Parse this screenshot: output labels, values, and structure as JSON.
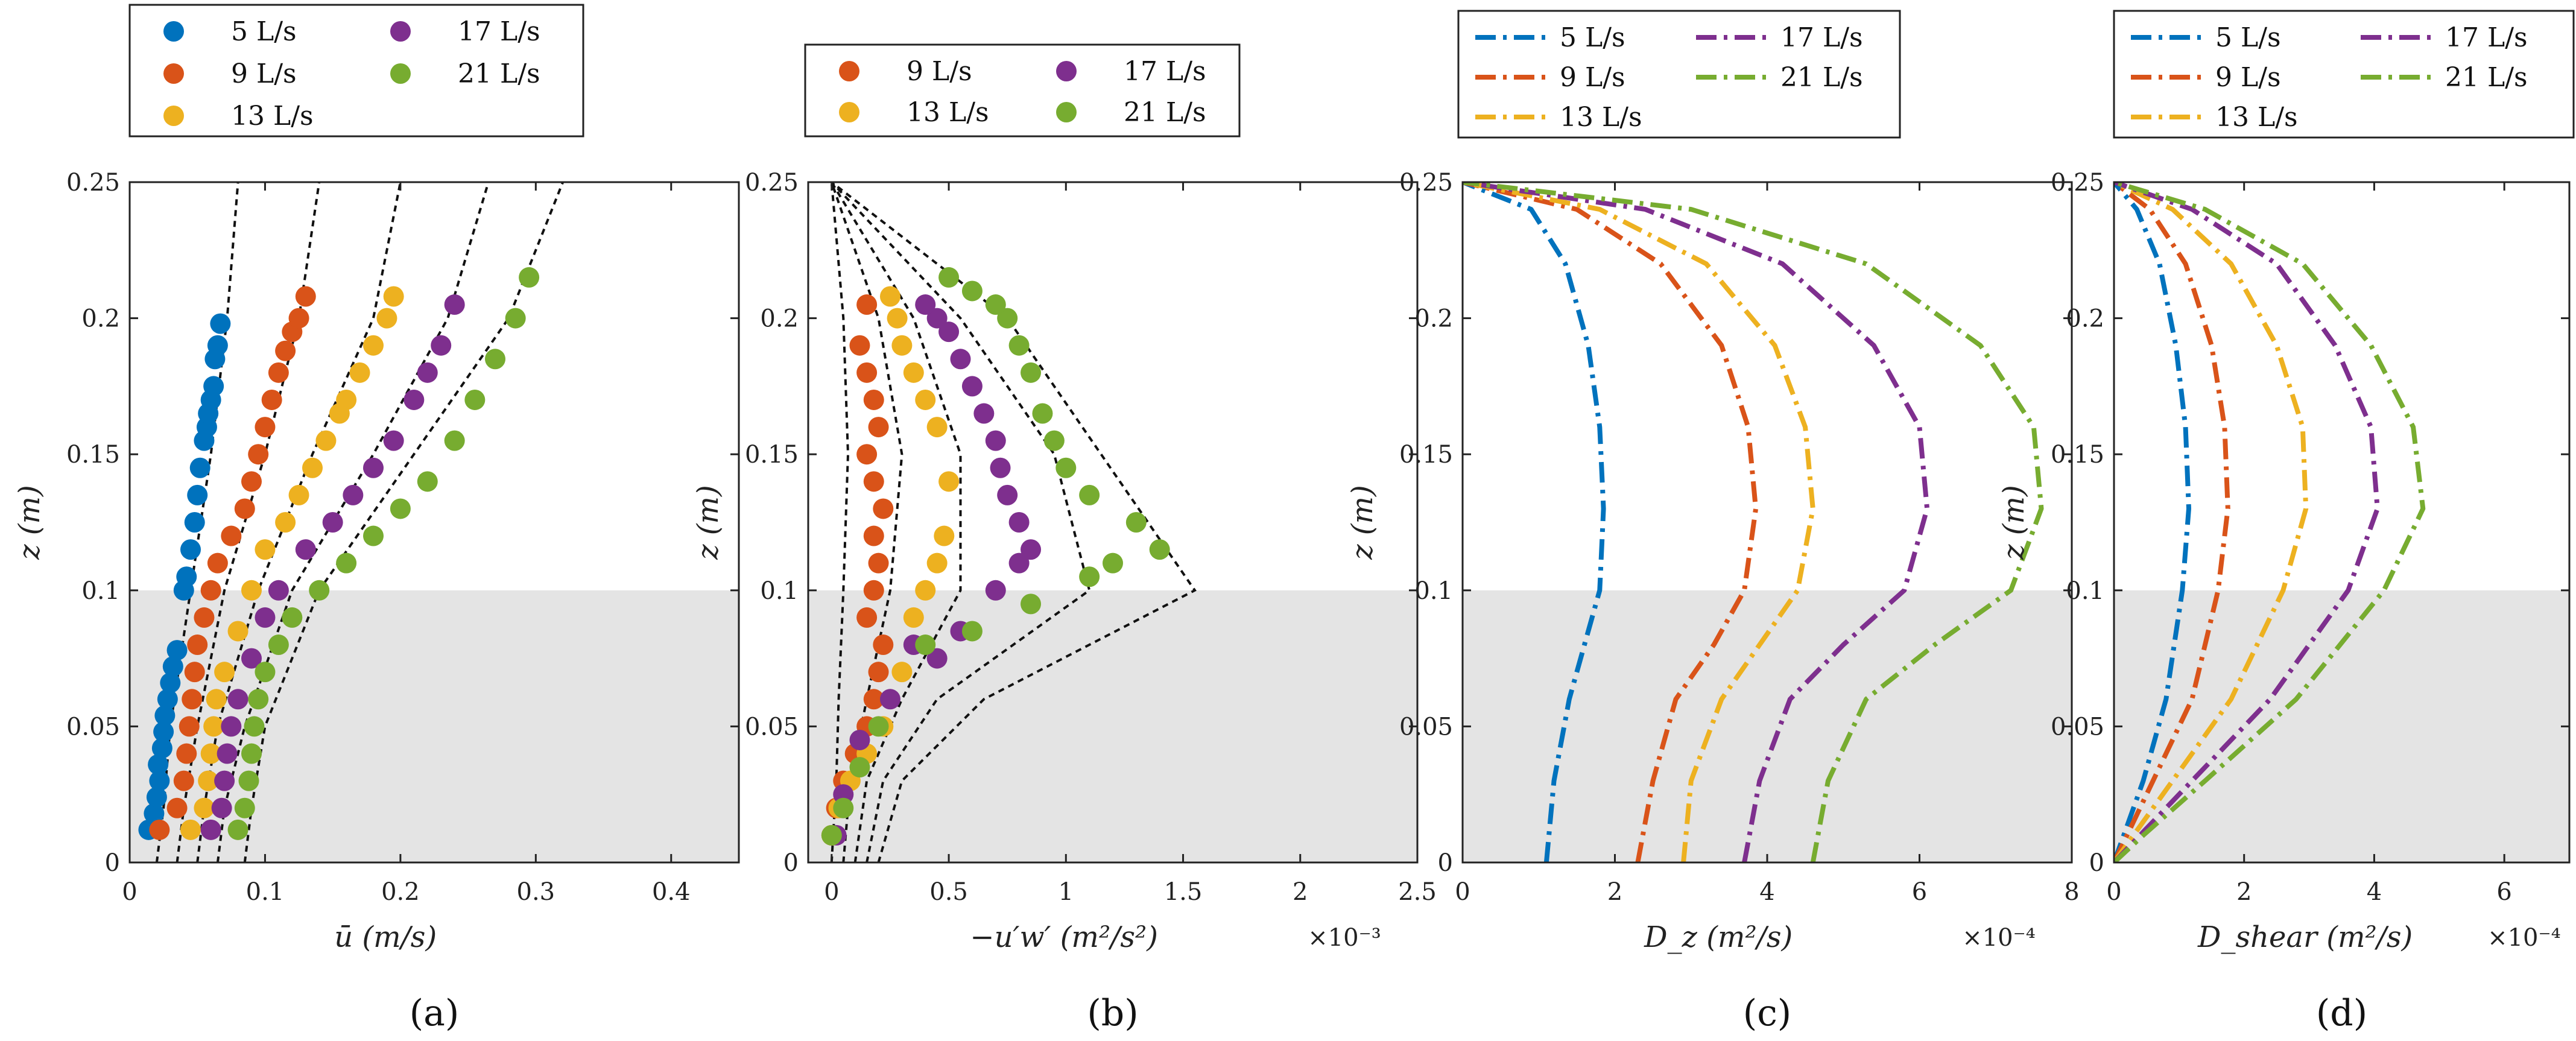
{
  "colors": {
    "s5": "#0072BD",
    "s9": "#D95319",
    "s13": "#EDB120",
    "s17": "#7E2F8E",
    "s21": "#77AC30",
    "shade": "#e4e4e4",
    "fit": "#111111"
  },
  "chart_data": [
    {
      "id": "a",
      "type": "scatter",
      "panel_label": "(a)",
      "xlabel": "ū  (m/s)",
      "ylabel": "z  (m)",
      "xlim": [
        0,
        0.45
      ],
      "ylim": [
        0,
        0.25
      ],
      "xticks": [
        "0",
        "0.1",
        "0.2",
        "0.3",
        "0.4"
      ],
      "xtick_vals": [
        0,
        0.1,
        0.2,
        0.3,
        0.4
      ],
      "yticks": [
        "0",
        "0.05",
        "0.1",
        "0.15",
        "0.2",
        "0.25"
      ],
      "ytick_vals": [
        0,
        0.05,
        0.1,
        0.15,
        0.2,
        0.25
      ],
      "x_multiplier": "",
      "shaded_region": [
        0,
        0.1
      ],
      "legend_cols": 2,
      "series": [
        {
          "name": "5 L/s",
          "color_key": "s5",
          "x": [
            0.014,
            0.018,
            0.02,
            0.022,
            0.021,
            0.024,
            0.025,
            0.026,
            0.028,
            0.03,
            0.032,
            0.035,
            0.04,
            0.042,
            0.045,
            0.048,
            0.05,
            0.052,
            0.055,
            0.057,
            0.058,
            0.06,
            0.062,
            0.063,
            0.065,
            0.067
          ],
          "y": [
            0.012,
            0.018,
            0.024,
            0.03,
            0.036,
            0.042,
            0.048,
            0.054,
            0.06,
            0.066,
            0.072,
            0.078,
            0.1,
            0.105,
            0.115,
            0.125,
            0.135,
            0.145,
            0.155,
            0.16,
            0.165,
            0.17,
            0.175,
            0.185,
            0.19,
            0.198
          ]
        },
        {
          "name": "9 L/s",
          "color_key": "s9",
          "x": [
            0.022,
            0.035,
            0.04,
            0.042,
            0.044,
            0.046,
            0.048,
            0.05,
            0.055,
            0.06,
            0.065,
            0.075,
            0.085,
            0.09,
            0.095,
            0.1,
            0.105,
            0.11,
            0.115,
            0.12,
            0.125,
            0.13
          ],
          "y": [
            0.012,
            0.02,
            0.03,
            0.04,
            0.05,
            0.06,
            0.07,
            0.08,
            0.09,
            0.1,
            0.11,
            0.12,
            0.13,
            0.14,
            0.15,
            0.16,
            0.17,
            0.18,
            0.188,
            0.195,
            0.2,
            0.208
          ]
        },
        {
          "name": "13 L/s",
          "color_key": "s13",
          "x": [
            0.045,
            0.055,
            0.058,
            0.06,
            0.062,
            0.064,
            0.07,
            0.08,
            0.09,
            0.1,
            0.115,
            0.125,
            0.135,
            0.145,
            0.155,
            0.16,
            0.17,
            0.18,
            0.19,
            0.195
          ],
          "y": [
            0.012,
            0.02,
            0.03,
            0.04,
            0.05,
            0.06,
            0.07,
            0.085,
            0.1,
            0.115,
            0.125,
            0.135,
            0.145,
            0.155,
            0.165,
            0.17,
            0.18,
            0.19,
            0.2,
            0.208
          ]
        },
        {
          "name": "17 L/s",
          "color_key": "s17",
          "x": [
            0.06,
            0.068,
            0.07,
            0.072,
            0.075,
            0.08,
            0.09,
            0.1,
            0.11,
            0.13,
            0.15,
            0.165,
            0.18,
            0.195,
            0.21,
            0.22,
            0.23,
            0.24
          ],
          "y": [
            0.012,
            0.02,
            0.03,
            0.04,
            0.05,
            0.06,
            0.075,
            0.09,
            0.1,
            0.115,
            0.125,
            0.135,
            0.145,
            0.155,
            0.17,
            0.18,
            0.19,
            0.205
          ]
        },
        {
          "name": "21 L/s",
          "color_key": "s21",
          "x": [
            0.08,
            0.085,
            0.088,
            0.09,
            0.092,
            0.095,
            0.1,
            0.11,
            0.12,
            0.14,
            0.16,
            0.18,
            0.2,
            0.22,
            0.24,
            0.255,
            0.27,
            0.285,
            0.295
          ],
          "y": [
            0.012,
            0.02,
            0.03,
            0.04,
            0.05,
            0.06,
            0.07,
            0.08,
            0.09,
            0.1,
            0.11,
            0.12,
            0.13,
            0.14,
            0.155,
            0.17,
            0.185,
            0.2,
            0.215
          ]
        }
      ],
      "fit_curves": [
        {
          "x": [
            0.02,
            0.025,
            0.03,
            0.045,
            0.06,
            0.072,
            0.08
          ],
          "y": [
            0.0,
            0.02,
            0.05,
            0.1,
            0.15,
            0.2,
            0.25
          ]
        },
        {
          "x": [
            0.035,
            0.04,
            0.05,
            0.07,
            0.1,
            0.125,
            0.14
          ],
          "y": [
            0.0,
            0.02,
            0.05,
            0.1,
            0.15,
            0.2,
            0.25
          ]
        },
        {
          "x": [
            0.05,
            0.055,
            0.065,
            0.095,
            0.135,
            0.18,
            0.2
          ],
          "y": [
            0.0,
            0.02,
            0.05,
            0.1,
            0.15,
            0.2,
            0.25
          ]
        },
        {
          "x": [
            0.065,
            0.07,
            0.085,
            0.12,
            0.18,
            0.235,
            0.265
          ],
          "y": [
            0.0,
            0.02,
            0.05,
            0.1,
            0.15,
            0.2,
            0.25
          ]
        },
        {
          "x": [
            0.085,
            0.09,
            0.1,
            0.14,
            0.21,
            0.28,
            0.32
          ],
          "y": [
            0.0,
            0.02,
            0.05,
            0.1,
            0.15,
            0.2,
            0.25
          ]
        }
      ]
    },
    {
      "id": "b",
      "type": "scatter",
      "panel_label": "(b)",
      "xlabel": "−u′w′  (m²/s²)",
      "ylabel": "z  (m)",
      "xlim": [
        -0.1,
        2.5
      ],
      "ylim": [
        0,
        0.25
      ],
      "xticks": [
        "0",
        "0.5",
        "1",
        "1.5",
        "2",
        "2.5"
      ],
      "xtick_vals": [
        0,
        0.5,
        1,
        1.5,
        2,
        2.5
      ],
      "yticks": [
        "0",
        "0.05",
        "0.1",
        "0.15",
        "0.2",
        "0.25"
      ],
      "ytick_vals": [
        0,
        0.05,
        0.1,
        0.15,
        0.2,
        0.25
      ],
      "x_multiplier": "×10⁻³",
      "shaded_region": [
        0,
        0.1
      ],
      "legend_cols": 2,
      "series": [
        {
          "name": "9 L/s",
          "color_key": "s9",
          "x": [
            0.0,
            0.02,
            0.05,
            0.1,
            0.15,
            0.18,
            0.2,
            0.22,
            0.15,
            0.18,
            0.2,
            0.18,
            0.22,
            0.18,
            0.15,
            0.2,
            0.18,
            0.15,
            0.12,
            0.15
          ],
          "y": [
            0.01,
            0.02,
            0.03,
            0.04,
            0.05,
            0.06,
            0.07,
            0.08,
            0.09,
            0.1,
            0.11,
            0.12,
            0.13,
            0.14,
            0.15,
            0.16,
            0.17,
            0.18,
            0.19,
            0.205
          ]
        },
        {
          "name": "13 L/s",
          "color_key": "s13",
          "x": [
            0.0,
            0.03,
            0.08,
            0.15,
            0.22,
            0.3,
            0.35,
            0.4,
            0.45,
            0.48,
            0.5,
            0.45,
            0.4,
            0.35,
            0.3,
            0.28,
            0.25
          ],
          "y": [
            0.01,
            0.02,
            0.03,
            0.04,
            0.05,
            0.07,
            0.09,
            0.1,
            0.11,
            0.12,
            0.14,
            0.16,
            0.17,
            0.18,
            0.19,
            0.2,
            0.208
          ]
        },
        {
          "name": "17 L/s",
          "color_key": "s17",
          "x": [
            0.02,
            0.05,
            0.12,
            0.25,
            0.35,
            0.45,
            0.55,
            0.7,
            0.8,
            0.85,
            0.8,
            0.75,
            0.72,
            0.7,
            0.65,
            0.6,
            0.55,
            0.5,
            0.45,
            0.4
          ],
          "y": [
            0.01,
            0.025,
            0.045,
            0.06,
            0.08,
            0.075,
            0.085,
            0.1,
            0.11,
            0.115,
            0.125,
            0.135,
            0.145,
            0.155,
            0.165,
            0.175,
            0.185,
            0.195,
            0.2,
            0.205
          ]
        },
        {
          "name": "21 L/s",
          "color_key": "s21",
          "x": [
            0.0,
            0.05,
            0.12,
            0.2,
            0.4,
            0.6,
            0.85,
            1.1,
            1.2,
            1.4,
            1.3,
            1.1,
            1.0,
            0.95,
            0.9,
            0.85,
            0.8,
            0.75,
            0.7,
            0.6,
            0.5
          ],
          "y": [
            0.01,
            0.02,
            0.035,
            0.05,
            0.08,
            0.085,
            0.095,
            0.105,
            0.11,
            0.115,
            0.125,
            0.135,
            0.145,
            0.155,
            0.165,
            0.18,
            0.19,
            0.2,
            0.205,
            0.21,
            0.215
          ]
        }
      ],
      "fit_curves": [
        {
          "x": [
            0.0,
            0.02,
            0.03,
            0.05,
            0.07,
            0.05,
            0.0
          ],
          "y": [
            0.0,
            0.03,
            0.06,
            0.1,
            0.15,
            0.2,
            0.25
          ]
        },
        {
          "x": [
            0.05,
            0.08,
            0.15,
            0.25,
            0.3,
            0.2,
            0.0
          ],
          "y": [
            0.0,
            0.03,
            0.06,
            0.1,
            0.15,
            0.2,
            0.25
          ]
        },
        {
          "x": [
            0.1,
            0.15,
            0.3,
            0.55,
            0.55,
            0.35,
            0.0
          ],
          "y": [
            0.0,
            0.03,
            0.06,
            0.1,
            0.15,
            0.2,
            0.25
          ]
        },
        {
          "x": [
            0.15,
            0.22,
            0.45,
            1.1,
            0.95,
            0.55,
            0.0
          ],
          "y": [
            0.0,
            0.03,
            0.06,
            0.1,
            0.15,
            0.2,
            0.25
          ]
        },
        {
          "x": [
            0.2,
            0.3,
            0.65,
            1.55,
            1.15,
            0.75,
            0.0
          ],
          "y": [
            0.0,
            0.03,
            0.06,
            0.1,
            0.15,
            0.2,
            0.25
          ]
        }
      ]
    },
    {
      "id": "c",
      "type": "line",
      "panel_label": "(c)",
      "xlabel": "D_z  (m²/s)",
      "ylabel": "z  (m)",
      "xlim": [
        0,
        8
      ],
      "ylim": [
        0,
        0.25
      ],
      "xticks": [
        "0",
        "2",
        "4",
        "6",
        "8"
      ],
      "xtick_vals": [
        0,
        2,
        4,
        6,
        8
      ],
      "yticks": [
        "0",
        "0.05",
        "0.1",
        "0.15",
        "0.2",
        "0.25"
      ],
      "ytick_vals": [
        0,
        0.05,
        0.1,
        0.15,
        0.2,
        0.25
      ],
      "x_multiplier": "×10⁻⁴",
      "shaded_region": [
        0,
        0.1
      ],
      "legend_cols": 2,
      "series": [
        {
          "name": "5 L/s",
          "color_key": "s5",
          "x": [
            1.1,
            1.2,
            1.4,
            1.6,
            1.8,
            1.85,
            1.8,
            1.65,
            1.35,
            0.9,
            0.0
          ],
          "y": [
            0.0,
            0.03,
            0.06,
            0.08,
            0.1,
            0.13,
            0.16,
            0.19,
            0.22,
            0.24,
            0.25
          ]
        },
        {
          "name": "9 L/s",
          "color_key": "s9",
          "x": [
            2.3,
            2.5,
            2.8,
            3.3,
            3.7,
            3.85,
            3.75,
            3.4,
            2.6,
            1.5,
            0.0
          ],
          "y": [
            0.0,
            0.03,
            0.06,
            0.08,
            0.1,
            0.13,
            0.16,
            0.19,
            0.22,
            0.24,
            0.25
          ]
        },
        {
          "name": "13 L/s",
          "color_key": "s13",
          "x": [
            2.9,
            3.0,
            3.4,
            3.9,
            4.4,
            4.6,
            4.5,
            4.1,
            3.2,
            1.8,
            0.0
          ],
          "y": [
            0.0,
            0.03,
            0.06,
            0.08,
            0.1,
            0.13,
            0.16,
            0.19,
            0.22,
            0.24,
            0.25
          ]
        },
        {
          "name": "17 L/s",
          "color_key": "s17",
          "x": [
            3.7,
            3.9,
            4.3,
            5.0,
            5.8,
            6.1,
            6.0,
            5.4,
            4.2,
            2.4,
            0.0
          ],
          "y": [
            0.0,
            0.03,
            0.06,
            0.08,
            0.1,
            0.13,
            0.16,
            0.19,
            0.22,
            0.24,
            0.25
          ]
        },
        {
          "name": "21 L/s",
          "color_key": "s21",
          "x": [
            4.6,
            4.8,
            5.3,
            6.2,
            7.2,
            7.6,
            7.5,
            6.8,
            5.3,
            3.0,
            0.0
          ],
          "y": [
            0.0,
            0.03,
            0.06,
            0.08,
            0.1,
            0.13,
            0.16,
            0.19,
            0.22,
            0.24,
            0.25
          ]
        }
      ]
    },
    {
      "id": "d",
      "type": "line",
      "panel_label": "(d)",
      "xlabel": "D_shear  (m²/s)",
      "ylabel": "z  (m)",
      "xlim": [
        0,
        7
      ],
      "ylim": [
        0,
        0.25
      ],
      "xticks": [
        "0",
        "2",
        "4",
        "6"
      ],
      "xtick_vals": [
        0,
        2,
        4,
        6
      ],
      "yticks": [
        "0",
        "0.05",
        "0.1",
        "0.15",
        "0.2",
        "0.25"
      ],
      "ytick_vals": [
        0,
        0.05,
        0.1,
        0.15,
        0.2,
        0.25
      ],
      "x_multiplier": "×10⁻⁴",
      "shaded_region": [
        0,
        0.1
      ],
      "legend_cols": 2,
      "series": [
        {
          "name": "5 L/s",
          "color_key": "s5",
          "x": [
            0.0,
            0.15,
            0.45,
            0.8,
            1.05,
            1.15,
            1.1,
            0.95,
            0.7,
            0.35,
            0.0
          ],
          "y": [
            0.0,
            0.01,
            0.03,
            0.06,
            0.1,
            0.13,
            0.16,
            0.19,
            0.22,
            0.24,
            0.25
          ]
        },
        {
          "name": "9 L/s",
          "color_key": "s9",
          "x": [
            0.0,
            0.2,
            0.6,
            1.2,
            1.6,
            1.75,
            1.7,
            1.5,
            1.1,
            0.55,
            0.0
          ],
          "y": [
            0.0,
            0.01,
            0.03,
            0.06,
            0.1,
            0.13,
            0.16,
            0.19,
            0.22,
            0.24,
            0.25
          ]
        },
        {
          "name": "13 L/s",
          "color_key": "s13",
          "x": [
            0.0,
            0.3,
            0.9,
            1.8,
            2.6,
            2.95,
            2.9,
            2.5,
            1.8,
            0.9,
            0.0
          ],
          "y": [
            0.0,
            0.01,
            0.03,
            0.06,
            0.1,
            0.13,
            0.16,
            0.19,
            0.22,
            0.24,
            0.25
          ]
        },
        {
          "name": "17 L/s",
          "color_key": "s17",
          "x": [
            0.0,
            0.4,
            1.2,
            2.4,
            3.6,
            4.05,
            3.95,
            3.4,
            2.5,
            1.2,
            0.0
          ],
          "y": [
            0.0,
            0.01,
            0.03,
            0.06,
            0.1,
            0.13,
            0.16,
            0.19,
            0.22,
            0.24,
            0.25
          ]
        },
        {
          "name": "21 L/s",
          "color_key": "s21",
          "x": [
            0.0,
            0.45,
            1.4,
            2.8,
            4.15,
            4.75,
            4.6,
            3.95,
            2.9,
            1.4,
            0.0
          ],
          "y": [
            0.0,
            0.01,
            0.03,
            0.06,
            0.1,
            0.13,
            0.16,
            0.19,
            0.22,
            0.24,
            0.25
          ]
        }
      ]
    }
  ]
}
